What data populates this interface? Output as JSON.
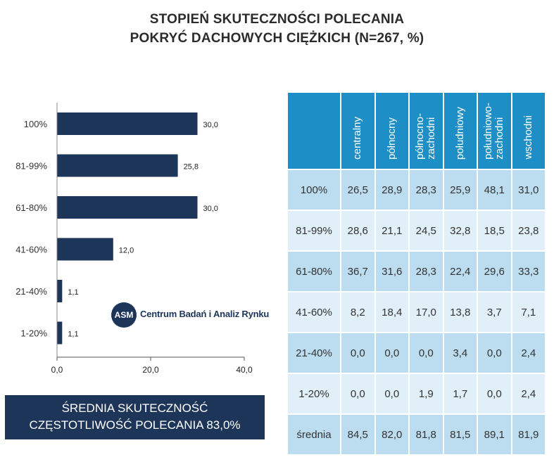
{
  "title": {
    "line1": "STOPIEŃ SKUTECZNOŚCI POLECANIA",
    "line2": "POKRYĆ DACHOWYCH CIĘŻKICH (N=267, %)"
  },
  "chart_data": {
    "type": "bar",
    "orientation": "horizontal",
    "categories": [
      "100%",
      "81-99%",
      "61-80%",
      "41-60%",
      "21-40%",
      "1-20%"
    ],
    "values": [
      30.0,
      25.8,
      30.0,
      12.0,
      1.1,
      1.1
    ],
    "value_labels": [
      "30,0",
      "25,8",
      "30,0",
      "12,0",
      "1,1",
      "1,1"
    ],
    "xlim": [
      0,
      40
    ],
    "xticks": [
      0,
      20,
      40
    ],
    "xtick_labels": [
      "0,0",
      "20,0",
      "40,0"
    ],
    "bar_color": "#1d3558",
    "grid": false
  },
  "logo": {
    "mark": "ASM",
    "text": "Centrum Badań i Analiz Rynku"
  },
  "summary": {
    "line1": "ŚREDNIA SKUTECZNOŚĆ",
    "line2": "CZĘSTOTLIWOŚĆ POLECANIA 83,0%"
  },
  "table": {
    "columns": [
      "centralny",
      "północny",
      "północno-\nzachodni",
      "południowy",
      "południowo-\nzachodni",
      "wschodni"
    ],
    "rows": [
      {
        "label": "100%",
        "values": [
          "26,5",
          "28,9",
          "28,3",
          "25,9",
          "48,1",
          "31,0"
        ]
      },
      {
        "label": "81-99%",
        "values": [
          "28,6",
          "21,1",
          "24,5",
          "32,8",
          "18,5",
          "23,8"
        ]
      },
      {
        "label": "61-80%",
        "values": [
          "36,7",
          "31,6",
          "28,3",
          "22,4",
          "29,6",
          "33,3"
        ]
      },
      {
        "label": "41-60%",
        "values": [
          "8,2",
          "18,4",
          "17,0",
          "13,8",
          "3,7",
          "7,1"
        ]
      },
      {
        "label": "21-40%",
        "values": [
          "0,0",
          "0,0",
          "0,0",
          "3,4",
          "0,0",
          "2,4"
        ]
      },
      {
        "label": "1-20%",
        "values": [
          "0,0",
          "0,0",
          "1,9",
          "1,7",
          "0,0",
          "2,4"
        ]
      },
      {
        "label": "średnia",
        "values": [
          "84,5",
          "82,0",
          "81,8",
          "81,5",
          "89,1",
          "81,9"
        ]
      }
    ],
    "header_color": "#1d8fc6",
    "row_color_a": "#bcdcef",
    "row_color_b": "#e0eff8"
  }
}
